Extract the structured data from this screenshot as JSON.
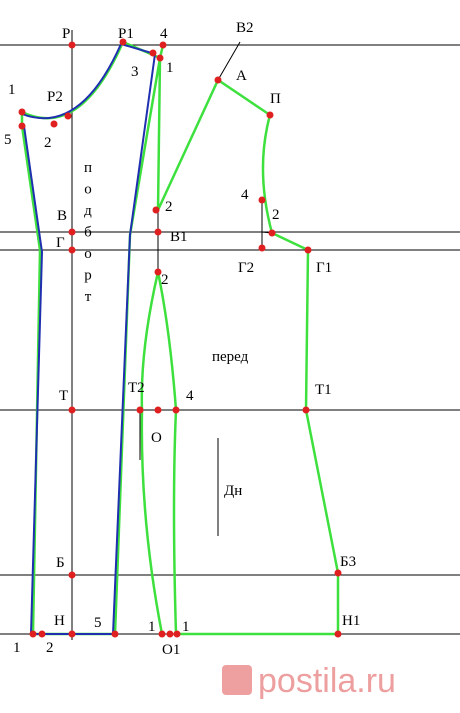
{
  "labels": [
    "Р",
    "Р1",
    "4",
    "В2",
    "3",
    "1",
    "А",
    "П",
    "1",
    "Р2",
    "2",
    "5",
    "2",
    "4",
    "2",
    "В",
    "Г",
    "В1",
    "Г2",
    "Г1",
    "2",
    "перед",
    "Т",
    "Т2",
    "4",
    "Т1",
    "О",
    "Дн",
    "Б",
    "Б3",
    "Н",
    "5",
    "1",
    "1",
    "Н1",
    "1",
    "2",
    "О1"
  ],
  "vertical_label": [
    "п",
    "о",
    "д",
    "б",
    "о",
    "р",
    "т"
  ],
  "watermark": "postila.ru"
}
